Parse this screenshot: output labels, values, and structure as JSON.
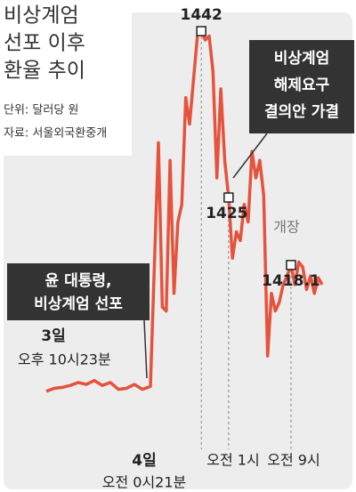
{
  "title": [
    "비상계엄",
    "선포 이후",
    "환율 추이"
  ],
  "unit": "단위: 달러당 원",
  "source": "자료: 서울외국환중개",
  "chart_data": {
    "type": "line",
    "color": "#e5533d",
    "ylim": [
      1403,
      1445
    ],
    "categories": [
      null,
      null,
      null,
      null,
      null,
      null,
      null,
      null,
      null,
      null,
      null,
      null,
      null,
      null,
      null,
      null,
      null,
      null,
      null,
      null,
      null,
      null,
      null,
      null,
      null,
      "오전 0시21분",
      null,
      null,
      null,
      null,
      null,
      null,
      "오전 1시",
      null,
      null,
      null,
      null,
      null,
      null,
      null,
      null,
      null,
      null,
      null,
      null,
      null,
      null,
      null,
      "오전 9시",
      null,
      null,
      null,
      null,
      null,
      null,
      null,
      null
    ],
    "x_day": "4일",
    "values": [
      1405.2,
      1405.5,
      1405.6,
      1405.8,
      1406.1,
      1405.9,
      1406.3,
      1405.8,
      1406.1,
      1405.4,
      1405.5,
      1405.9,
      1405.4,
      1405.7,
      1430.6,
      1413.8,
      1413.4,
      1428.8,
      1415.2,
      1422.5,
      1424.3,
      1435.2,
      1432.5,
      1437.0,
      1441.5,
      1442,
      1441.1,
      1441.5,
      1437.9,
      1427.0,
      1436.1,
      1428.8,
      1425,
      1418.8,
      1421.5,
      1420.6,
      1424.3,
      1422.5,
      1429.7,
      1427.0,
      1428.8,
      1425.2,
      1408.8,
      1415.2,
      1413.4,
      1414.3,
      1416.1,
      1417.0,
      1418.1,
      1416.1,
      1418.4,
      1417.9,
      1415.6,
      1417.0,
      1415.2,
      1416.8,
      1416.1
    ],
    "annotations": {
      "start_day": "3일",
      "start_time": "오후 10시23분",
      "declare": [
        "윤 대통령,",
        "비상계엄 선포"
      ],
      "lift": [
        "비상계엄",
        "해제요구",
        "결의안 가결"
      ],
      "open": "개장"
    }
  }
}
